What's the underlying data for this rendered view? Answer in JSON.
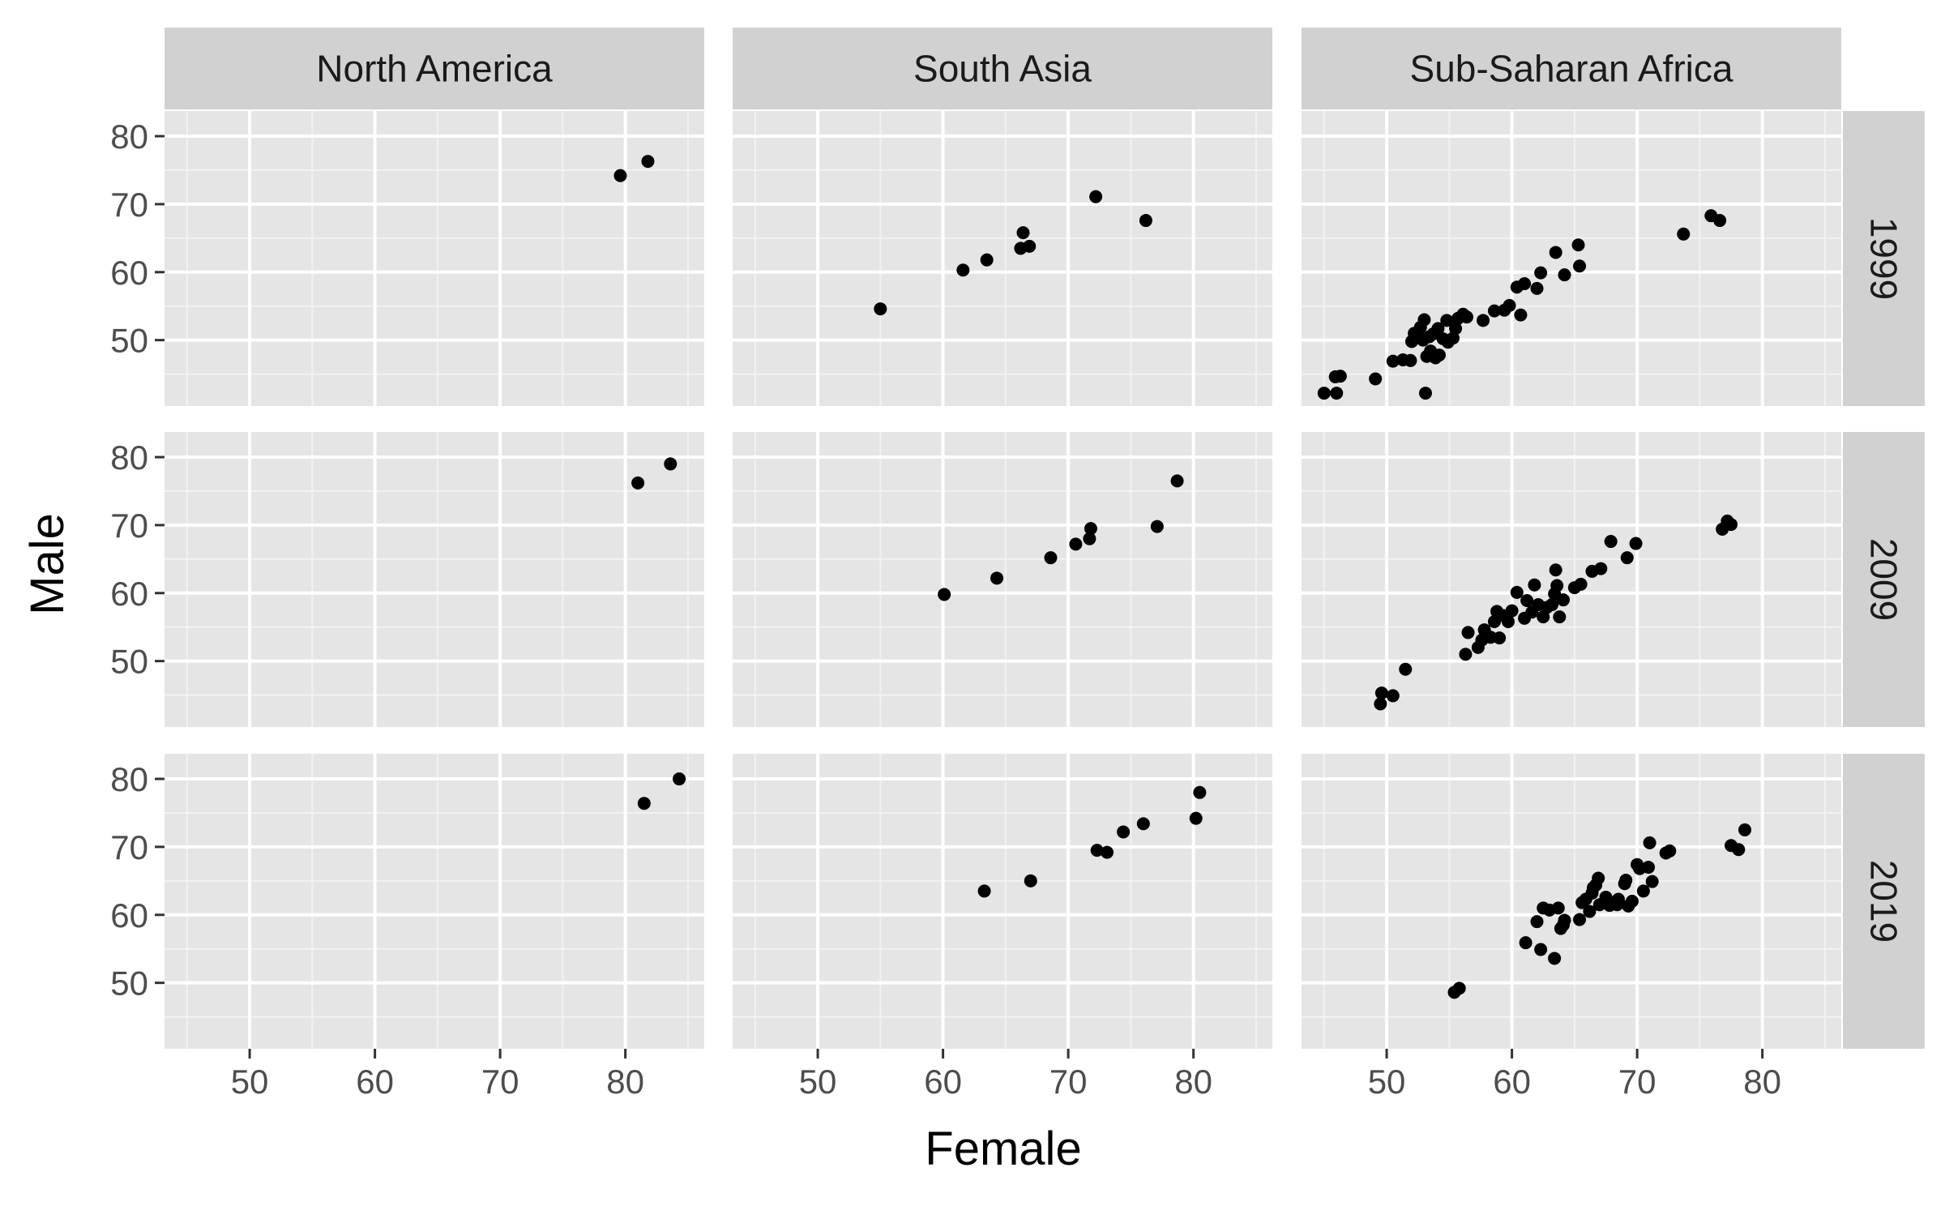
{
  "chart_data": {
    "type": "scatter",
    "title": "",
    "xlabel": "Female",
    "ylabel": "Male",
    "xlim": [
      43.2,
      86.3
    ],
    "ylim": [
      40.3,
      83.7
    ],
    "x_ticks": [
      50,
      60,
      70,
      80
    ],
    "y_ticks": [
      50,
      60,
      70,
      80
    ],
    "x_tick_labels": [
      "50",
      "60",
      "70",
      "80"
    ],
    "y_tick_labels": [
      "50",
      "60",
      "70",
      "80"
    ],
    "grid": true,
    "panel_background": "#e5e5e5",
    "strip_background": "#d1d1d1",
    "point_color": "#000000",
    "columns": [
      "North America",
      "South Asia",
      "Sub-Saharan Africa"
    ],
    "rows": [
      "1999",
      "2009",
      "2019"
    ],
    "panels": [
      {
        "column": "North America",
        "row": "1999",
        "points": [
          [
            79.6,
            74.2
          ],
          [
            81.8,
            76.3
          ]
        ]
      },
      {
        "column": "South Asia",
        "row": "1999",
        "points": [
          [
            55.0,
            54.6
          ],
          [
            61.6,
            60.3
          ],
          [
            63.5,
            61.8
          ],
          [
            66.2,
            63.5
          ],
          [
            66.4,
            65.8
          ],
          [
            66.9,
            63.8
          ],
          [
            72.2,
            71.1
          ],
          [
            76.2,
            67.6
          ]
        ]
      },
      {
        "column": "Sub-Saharan Africa",
        "row": "1999",
        "points": [
          [
            45.0,
            42.2
          ],
          [
            46.0,
            42.2
          ],
          [
            45.9,
            44.6
          ],
          [
            46.3,
            44.7
          ],
          [
            49.1,
            44.3
          ],
          [
            50.5,
            46.9
          ],
          [
            51.3,
            47.1
          ],
          [
            51.9,
            47.0
          ],
          [
            52.0,
            49.8
          ],
          [
            52.2,
            51.0
          ],
          [
            52.5,
            50.6
          ],
          [
            52.9,
            50.0
          ],
          [
            52.7,
            51.9
          ],
          [
            53.0,
            53.0
          ],
          [
            53.2,
            47.6
          ],
          [
            53.4,
            50.5
          ],
          [
            53.5,
            48.4
          ],
          [
            53.9,
            47.4
          ],
          [
            53.7,
            50.9
          ],
          [
            54.1,
            51.7
          ],
          [
            54.2,
            47.8
          ],
          [
            54.5,
            50.2
          ],
          [
            54.8,
            52.9
          ],
          [
            54.9,
            49.7
          ],
          [
            55.3,
            50.3
          ],
          [
            55.5,
            51.7
          ],
          [
            55.7,
            53.2
          ],
          [
            56.1,
            53.8
          ],
          [
            56.4,
            53.4
          ],
          [
            53.1,
            42.2
          ],
          [
            57.7,
            52.9
          ],
          [
            58.6,
            54.3
          ],
          [
            59.4,
            54.4
          ],
          [
            59.8,
            55.1
          ],
          [
            60.4,
            57.8
          ],
          [
            61.0,
            58.3
          ],
          [
            60.7,
            53.7
          ],
          [
            62.0,
            57.6
          ],
          [
            62.3,
            59.9
          ],
          [
            63.5,
            62.9
          ],
          [
            64.2,
            59.6
          ],
          [
            65.3,
            64.0
          ],
          [
            65.4,
            60.9
          ],
          [
            73.7,
            65.6
          ],
          [
            75.9,
            68.3
          ],
          [
            76.6,
            67.6
          ]
        ]
      },
      {
        "column": "North America",
        "row": "2009",
        "points": [
          [
            81.0,
            76.2
          ],
          [
            83.6,
            79.0
          ]
        ]
      },
      {
        "column": "South Asia",
        "row": "2009",
        "points": [
          [
            60.1,
            59.8
          ],
          [
            64.3,
            62.2
          ],
          [
            68.6,
            65.2
          ],
          [
            70.6,
            67.2
          ],
          [
            71.7,
            68.0
          ],
          [
            71.8,
            69.5
          ],
          [
            77.1,
            69.8
          ],
          [
            78.7,
            76.5
          ]
        ]
      },
      {
        "column": "Sub-Saharan Africa",
        "row": "2009",
        "points": [
          [
            49.5,
            43.7
          ],
          [
            49.6,
            45.3
          ],
          [
            50.5,
            44.9
          ],
          [
            51.5,
            48.8
          ],
          [
            56.3,
            51.0
          ],
          [
            56.5,
            54.2
          ],
          [
            57.3,
            52.0
          ],
          [
            57.6,
            53.1
          ],
          [
            57.8,
            54.6
          ],
          [
            58.3,
            53.5
          ],
          [
            58.6,
            55.8
          ],
          [
            58.8,
            57.3
          ],
          [
            59.0,
            53.4
          ],
          [
            59.3,
            56.7
          ],
          [
            59.7,
            55.8
          ],
          [
            60.0,
            57.4
          ],
          [
            60.4,
            60.1
          ],
          [
            61.0,
            56.3
          ],
          [
            61.2,
            58.9
          ],
          [
            61.6,
            57.2
          ],
          [
            61.8,
            61.2
          ],
          [
            62.1,
            58.3
          ],
          [
            62.5,
            56.5
          ],
          [
            62.8,
            57.9
          ],
          [
            63.2,
            58.3
          ],
          [
            63.4,
            59.9
          ],
          [
            63.6,
            61.1
          ],
          [
            63.5,
            63.4
          ],
          [
            63.8,
            56.5
          ],
          [
            64.1,
            59.0
          ],
          [
            65.0,
            60.8
          ],
          [
            65.5,
            61.3
          ],
          [
            66.4,
            63.2
          ],
          [
            67.1,
            63.6
          ],
          [
            67.9,
            67.6
          ],
          [
            69.2,
            65.2
          ],
          [
            69.9,
            67.3
          ],
          [
            76.8,
            69.4
          ],
          [
            77.2,
            70.6
          ],
          [
            77.5,
            70.1
          ]
        ]
      },
      {
        "column": "North America",
        "row": "2019",
        "points": [
          [
            81.5,
            76.4
          ],
          [
            84.3,
            80.0
          ]
        ]
      },
      {
        "column": "South Asia",
        "row": "2019",
        "points": [
          [
            63.3,
            63.5
          ],
          [
            67.0,
            65.0
          ],
          [
            72.3,
            69.5
          ],
          [
            73.1,
            69.2
          ],
          [
            74.4,
            72.2
          ],
          [
            76.0,
            73.4
          ],
          [
            80.2,
            74.2
          ],
          [
            80.5,
            78.0
          ]
        ]
      },
      {
        "column": "Sub-Saharan Africa",
        "row": "2019",
        "points": [
          [
            55.4,
            48.6
          ],
          [
            55.8,
            49.2
          ],
          [
            61.1,
            55.9
          ],
          [
            62.0,
            59.0
          ],
          [
            62.3,
            54.9
          ],
          [
            62.5,
            61.0
          ],
          [
            63.0,
            60.7
          ],
          [
            63.4,
            53.6
          ],
          [
            63.7,
            61.0
          ],
          [
            63.9,
            58.0
          ],
          [
            64.1,
            58.5
          ],
          [
            64.2,
            59.2
          ],
          [
            65.4,
            59.3
          ],
          [
            65.6,
            61.8
          ],
          [
            65.9,
            62.3
          ],
          [
            66.2,
            60.5
          ],
          [
            66.4,
            63.2
          ],
          [
            66.7,
            64.4
          ],
          [
            66.5,
            64.0
          ],
          [
            66.9,
            65.4
          ],
          [
            67.0,
            61.5
          ],
          [
            67.5,
            62.6
          ],
          [
            67.8,
            61.4
          ],
          [
            68.4,
            61.5
          ],
          [
            68.5,
            62.3
          ],
          [
            69.0,
            64.6
          ],
          [
            69.1,
            65.1
          ],
          [
            69.3,
            61.3
          ],
          [
            69.6,
            62.0
          ],
          [
            70.0,
            67.4
          ],
          [
            70.2,
            66.8
          ],
          [
            70.5,
            63.5
          ],
          [
            70.9,
            67.0
          ],
          [
            71.0,
            70.6
          ],
          [
            71.2,
            64.9
          ],
          [
            72.3,
            69.1
          ],
          [
            72.6,
            69.4
          ],
          [
            77.5,
            70.2
          ],
          [
            78.1,
            69.6
          ],
          [
            78.6,
            72.5
          ]
        ]
      }
    ]
  }
}
